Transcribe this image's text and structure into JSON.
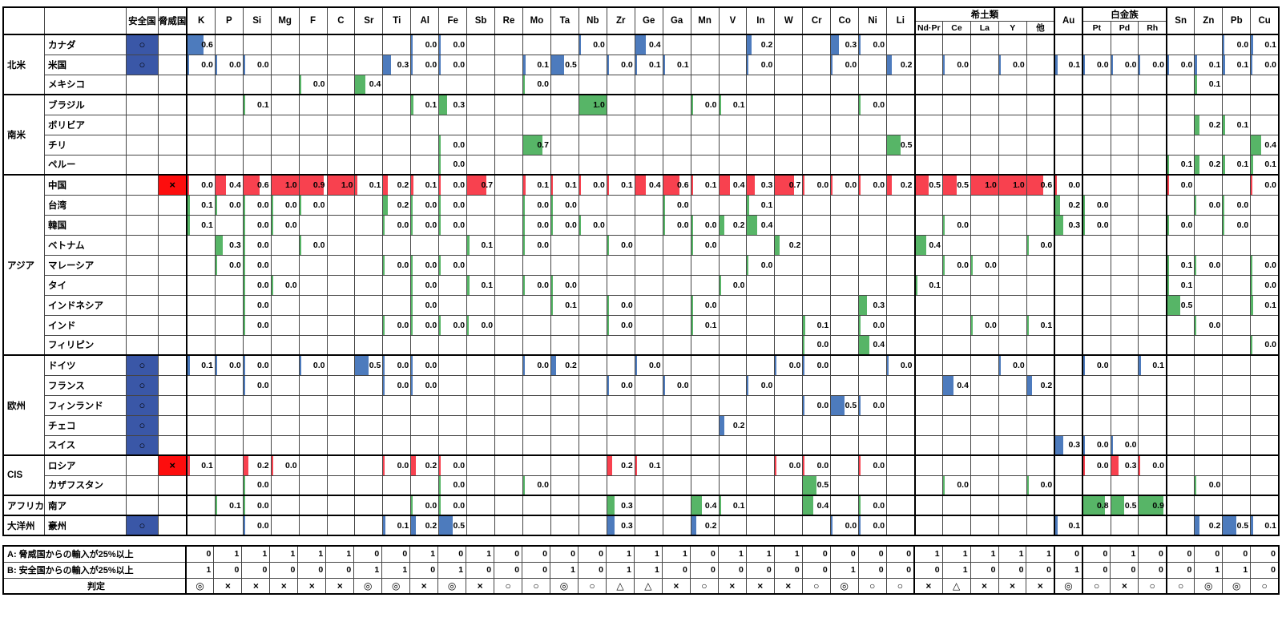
{
  "chart_data": {
    "type": "table",
    "title": "",
    "header": {
      "safe_label": "安全国",
      "threat_label": "脅威国",
      "rare_earth_label": "希土類",
      "platinum_label": "白金族"
    },
    "columns": [
      "K",
      "P",
      "Si",
      "Mg",
      "F",
      "C",
      "Sr",
      "Ti",
      "Al",
      "Fe",
      "Sb",
      "Re",
      "Mo",
      "Ta",
      "Nb",
      "Zr",
      "Ge",
      "Ga",
      "Mn",
      "V",
      "In",
      "W",
      "Cr",
      "Co",
      "Ni",
      "Li",
      "Nd·Pr",
      "Ce",
      "La",
      "Y",
      "他",
      "Au",
      "Pt",
      "Pd",
      "Rh",
      "Sn",
      "Zn",
      "Pb",
      "Cu"
    ],
    "rare_earth_span": [
      26,
      30
    ],
    "platinum_span": [
      32,
      34
    ],
    "colors": {
      "safe_bar": "#4d7bbd",
      "threat_bar": "#f8414f",
      "other_bar": "#57b567",
      "safe_cell_bg": "#3a57a7",
      "threat_cell_bg": "#fd0d0d"
    },
    "marks": {
      "safe": "○",
      "threat": "×"
    },
    "regions": [
      {
        "name": "北米",
        "countries": [
          {
            "name": "カナダ",
            "status": "safe",
            "values": {
              "K": "0.6",
              "Al": "0.0",
              "Fe": "0.0",
              "Nb": "0.0",
              "Ge": "0.4",
              "In": "0.2",
              "Co": "0.3",
              "Ni": "0.0",
              "Pb": "0.0",
              "Cu": "0.1"
            }
          },
          {
            "name": "米国",
            "status": "safe",
            "values": {
              "K": "0.0",
              "P": "0.0",
              "Si": "0.0",
              "Ti": "0.3",
              "Al": "0.0",
              "Fe": "0.0",
              "Mo": "0.1",
              "Ta": "0.5",
              "Zr": "0.0",
              "Ge": "0.1",
              "Ga": "0.1",
              "In": "0.0",
              "Co": "0.0",
              "Li": "0.2",
              "Ce": "0.0",
              "Y": "0.0",
              "Au": "0.1",
              "Pt": "0.0",
              "Pd": "0.0",
              "Rh": "0.0",
              "Sn": "0.0",
              "Zn": "0.1",
              "Pb": "0.1",
              "Cu": "0.0"
            }
          },
          {
            "name": "メキシコ",
            "status": "",
            "values": {
              "F": "0.0",
              "Sr": "0.4",
              "Mo": "0.0",
              "Zn": "0.1"
            }
          }
        ]
      },
      {
        "name": "南米",
        "countries": [
          {
            "name": "ブラジル",
            "status": "",
            "values": {
              "Si": "0.1",
              "Al": "0.1",
              "Fe": "0.3",
              "Nb": "1.0",
              "Mn": "0.0",
              "V": "0.1",
              "Ni": "0.0"
            }
          },
          {
            "name": "ボリビア",
            "status": "",
            "values": {
              "Zn": "0.2",
              "Pb": "0.1"
            }
          },
          {
            "name": "チリ",
            "status": "",
            "values": {
              "Fe": "0.0",
              "Mo": "0.7",
              "Li": "0.5",
              "Cu": "0.4"
            }
          },
          {
            "name": "ペルー",
            "status": "",
            "values": {
              "Fe": "0.0",
              "Sn": "0.1",
              "Zn": "0.2",
              "Pb": "0.1",
              "Cu": "0.1"
            }
          }
        ]
      },
      {
        "name": "アジア",
        "countries": [
          {
            "name": "中国",
            "status": "threat",
            "values": {
              "K": "0.0",
              "P": "0.4",
              "Si": "0.6",
              "Mg": "1.0",
              "F": "0.9",
              "C": "1.0",
              "Sr": "0.1",
              "Ti": "0.2",
              "Al": "0.1",
              "Fe": "0.0",
              "Sb": "0.7",
              "Mo": "0.1",
              "Ta": "0.1",
              "Nb": "0.0",
              "Zr": "0.1",
              "Ge": "0.4",
              "Ga": "0.6",
              "Mn": "0.1",
              "V": "0.4",
              "In": "0.3",
              "W": "0.7",
              "Cr": "0.0",
              "Co": "0.0",
              "Ni": "0.0",
              "Li": "0.2",
              "Nd·Pr": "0.5",
              "Ce": "0.5",
              "La": "1.0",
              "Y": "1.0",
              "他": "0.6",
              "Au": "0.0",
              "Sn": "0.0",
              "Cu": "0.0"
            }
          },
          {
            "name": "台湾",
            "status": "",
            "values": {
              "K": "0.1",
              "P": "0.0",
              "Si": "0.0",
              "Mg": "0.0",
              "F": "0.0",
              "Ti": "0.2",
              "Al": "0.0",
              "Fe": "0.0",
              "Mo": "0.0",
              "Ta": "0.0",
              "Ga": "0.0",
              "In": "0.1",
              "Au": "0.2",
              "Pt": "0.0",
              "Zn": "0.0",
              "Pb": "0.0"
            }
          },
          {
            "name": "韓国",
            "status": "",
            "values": {
              "K": "0.1",
              "Si": "0.0",
              "Mg": "0.0",
              "Ti": "0.0",
              "Al": "0.0",
              "Fe": "0.0",
              "Mo": "0.0",
              "Ta": "0.0",
              "Nb": "0.0",
              "Ga": "0.0",
              "Mn": "0.0",
              "V": "0.2",
              "In": "0.4",
              "Ce": "0.0",
              "Au": "0.3",
              "Pt": "0.0",
              "Sn": "0.0",
              "Pb": "0.0"
            }
          },
          {
            "name": "ベトナム",
            "status": "",
            "values": {
              "P": "0.3",
              "Si": "0.0",
              "F": "0.0",
              "Sb": "0.1",
              "Mo": "0.0",
              "Zr": "0.0",
              "Mn": "0.0",
              "W": "0.2",
              "Nd·Pr": "0.4",
              "他": "0.0"
            }
          },
          {
            "name": "マレーシア",
            "status": "",
            "values": {
              "P": "0.0",
              "Si": "0.0",
              "Ti": "0.0",
              "Al": "0.0",
              "Fe": "0.0",
              "In": "0.0",
              "Ce": "0.0",
              "La": "0.0",
              "Sn": "0.1",
              "Zn": "0.0",
              "Cu": "0.0"
            }
          },
          {
            "name": "タイ",
            "status": "",
            "values": {
              "Si": "0.0",
              "Mg": "0.0",
              "Al": "0.0",
              "Sb": "0.1",
              "Mo": "0.0",
              "Ta": "0.0",
              "V": "0.0",
              "Nd·Pr": "0.1",
              "Sn": "0.1",
              "Cu": "0.0"
            }
          },
          {
            "name": "インドネシア",
            "status": "",
            "values": {
              "Si": "0.0",
              "Al": "0.0",
              "Ta": "0.1",
              "Zr": "0.0",
              "Mn": "0.0",
              "Ni": "0.3",
              "Sn": "0.5",
              "Cu": "0.1"
            }
          },
          {
            "name": "インド",
            "status": "",
            "values": {
              "Si": "0.0",
              "Ti": "0.0",
              "Al": "0.0",
              "Fe": "0.0",
              "Sb": "0.0",
              "Zr": "0.0",
              "Mn": "0.1",
              "Cr": "0.1",
              "Ni": "0.0",
              "La": "0.0",
              "他": "0.1",
              "Zn": "0.0"
            }
          },
          {
            "name": "フィリピン",
            "status": "",
            "values": {
              "Cr": "0.0",
              "Ni": "0.4",
              "Cu": "0.0"
            }
          }
        ]
      },
      {
        "name": "欧州",
        "countries": [
          {
            "name": "ドイツ",
            "status": "safe",
            "values": {
              "K": "0.1",
              "P": "0.0",
              "Si": "0.0",
              "F": "0.0",
              "Sr": "0.5",
              "Ti": "0.0",
              "Al": "0.0",
              "Mo": "0.0",
              "Ta": "0.2",
              "Ge": "0.0",
              "W": "0.0",
              "Cr": "0.0",
              "Li": "0.0",
              "Y": "0.0",
              "Pt": "0.0",
              "Rh": "0.1"
            }
          },
          {
            "name": "フランス",
            "status": "safe",
            "values": {
              "Si": "0.0",
              "Ti": "0.0",
              "Al": "0.0",
              "Zr": "0.0",
              "Ga": "0.0",
              "In": "0.0",
              "Ce": "0.4",
              "他": "0.2"
            }
          },
          {
            "name": "フィンランド",
            "status": "safe",
            "values": {
              "Cr": "0.0",
              "Co": "0.5",
              "Ni": "0.0"
            }
          },
          {
            "name": "チェコ",
            "status": "safe",
            "values": {
              "V": "0.2"
            }
          },
          {
            "name": "スイス",
            "status": "safe",
            "values": {
              "Au": "0.3",
              "Pt": "0.0",
              "Pd": "0.0"
            }
          }
        ]
      },
      {
        "name": "CIS",
        "countries": [
          {
            "name": "ロシア",
            "status": "threat",
            "values": {
              "K": "0.1",
              "Si": "0.2",
              "Mg": "0.0",
              "Ti": "0.0",
              "Al": "0.2",
              "Fe": "0.0",
              "Zr": "0.2",
              "Ge": "0.1",
              "W": "0.0",
              "Cr": "0.0",
              "Ni": "0.0",
              "Pt": "0.0",
              "Pd": "0.3",
              "Rh": "0.0"
            }
          },
          {
            "name": "カザフスタン",
            "status": "",
            "values": {
              "Si": "0.0",
              "Fe": "0.0",
              "Mo": "0.0",
              "Cr": "0.5",
              "Ce": "0.0",
              "他": "0.0",
              "Zn": "0.0"
            }
          }
        ]
      },
      {
        "name": "アフリカ",
        "countries": [
          {
            "name": "南ア",
            "status": "",
            "values": {
              "P": "0.1",
              "Si": "0.0",
              "Al": "0.0",
              "Fe": "0.0",
              "Zr": "0.3",
              "Mn": "0.4",
              "V": "0.1",
              "Cr": "0.4",
              "Ni": "0.0",
              "Pt": "0.8",
              "Pd": "0.5",
              "Rh": "0.9"
            }
          }
        ]
      },
      {
        "name": "大洋州",
        "countries": [
          {
            "name": "豪州",
            "status": "safe",
            "values": {
              "Si": "0.0",
              "Ti": "0.1",
              "Al": "0.2",
              "Fe": "0.5",
              "Zr": "0.3",
              "Mn": "0.2",
              "Co": "0.0",
              "Ni": "0.0",
              "Au": "0.1",
              "Zn": "0.2",
              "Pb": "0.5",
              "Cu": "0.1"
            }
          }
        ]
      }
    ],
    "footer": {
      "a_label": "A: 脅威国からの輸入が25%以上",
      "b_label": "B: 安全国からの輸入が25%以上",
      "judge_label": "判定",
      "a_counts": [
        0,
        1,
        1,
        1,
        1,
        1,
        0,
        0,
        1,
        0,
        1,
        0,
        0,
        0,
        0,
        1,
        1,
        1,
        0,
        1,
        1,
        1,
        0,
        0,
        0,
        0,
        1,
        1,
        1,
        1,
        1,
        0,
        0,
        1,
        0,
        0,
        0,
        0,
        0
      ],
      "b_counts": [
        1,
        0,
        0,
        0,
        0,
        0,
        1,
        1,
        0,
        1,
        0,
        0,
        0,
        1,
        0,
        1,
        1,
        0,
        0,
        0,
        0,
        0,
        0,
        1,
        0,
        0,
        0,
        1,
        0,
        0,
        0,
        1,
        0,
        0,
        0,
        0,
        1,
        1,
        0
      ],
      "judgement": [
        "◎",
        "×",
        "×",
        "×",
        "×",
        "×",
        "◎",
        "◎",
        "×",
        "◎",
        "×",
        "○",
        "○",
        "◎",
        "○",
        "△",
        "△",
        "×",
        "○",
        "×",
        "×",
        "×",
        "○",
        "◎",
        "○",
        "○",
        "×",
        "△",
        "×",
        "×",
        "×",
        "◎",
        "○",
        "×",
        "○",
        "○",
        "◎",
        "◎",
        "○"
      ]
    }
  }
}
